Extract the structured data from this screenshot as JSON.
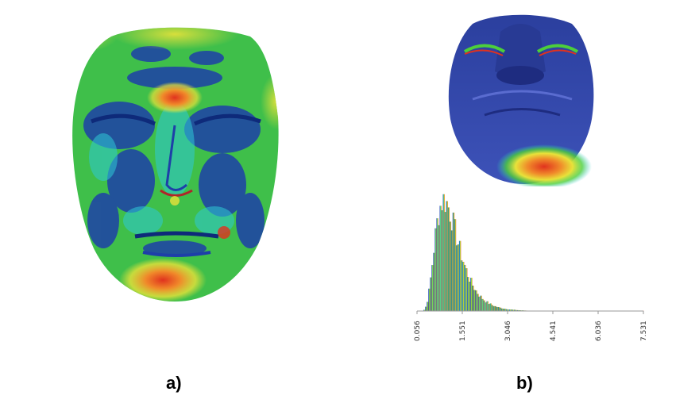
{
  "captions": {
    "a": "a)",
    "b": "b)"
  },
  "histogram": {
    "tick_labels": [
      "0.056",
      "1.551",
      "3.046",
      "4.541",
      "6.036",
      "7.531"
    ],
    "xlim": [
      0.056,
      7.531
    ]
  },
  "colors": {
    "deep_blue": "#1e3fa8",
    "cyan": "#2ec9d6",
    "green": "#4ccf3a",
    "yellow": "#e8e23a",
    "red": "#e0321e"
  }
}
